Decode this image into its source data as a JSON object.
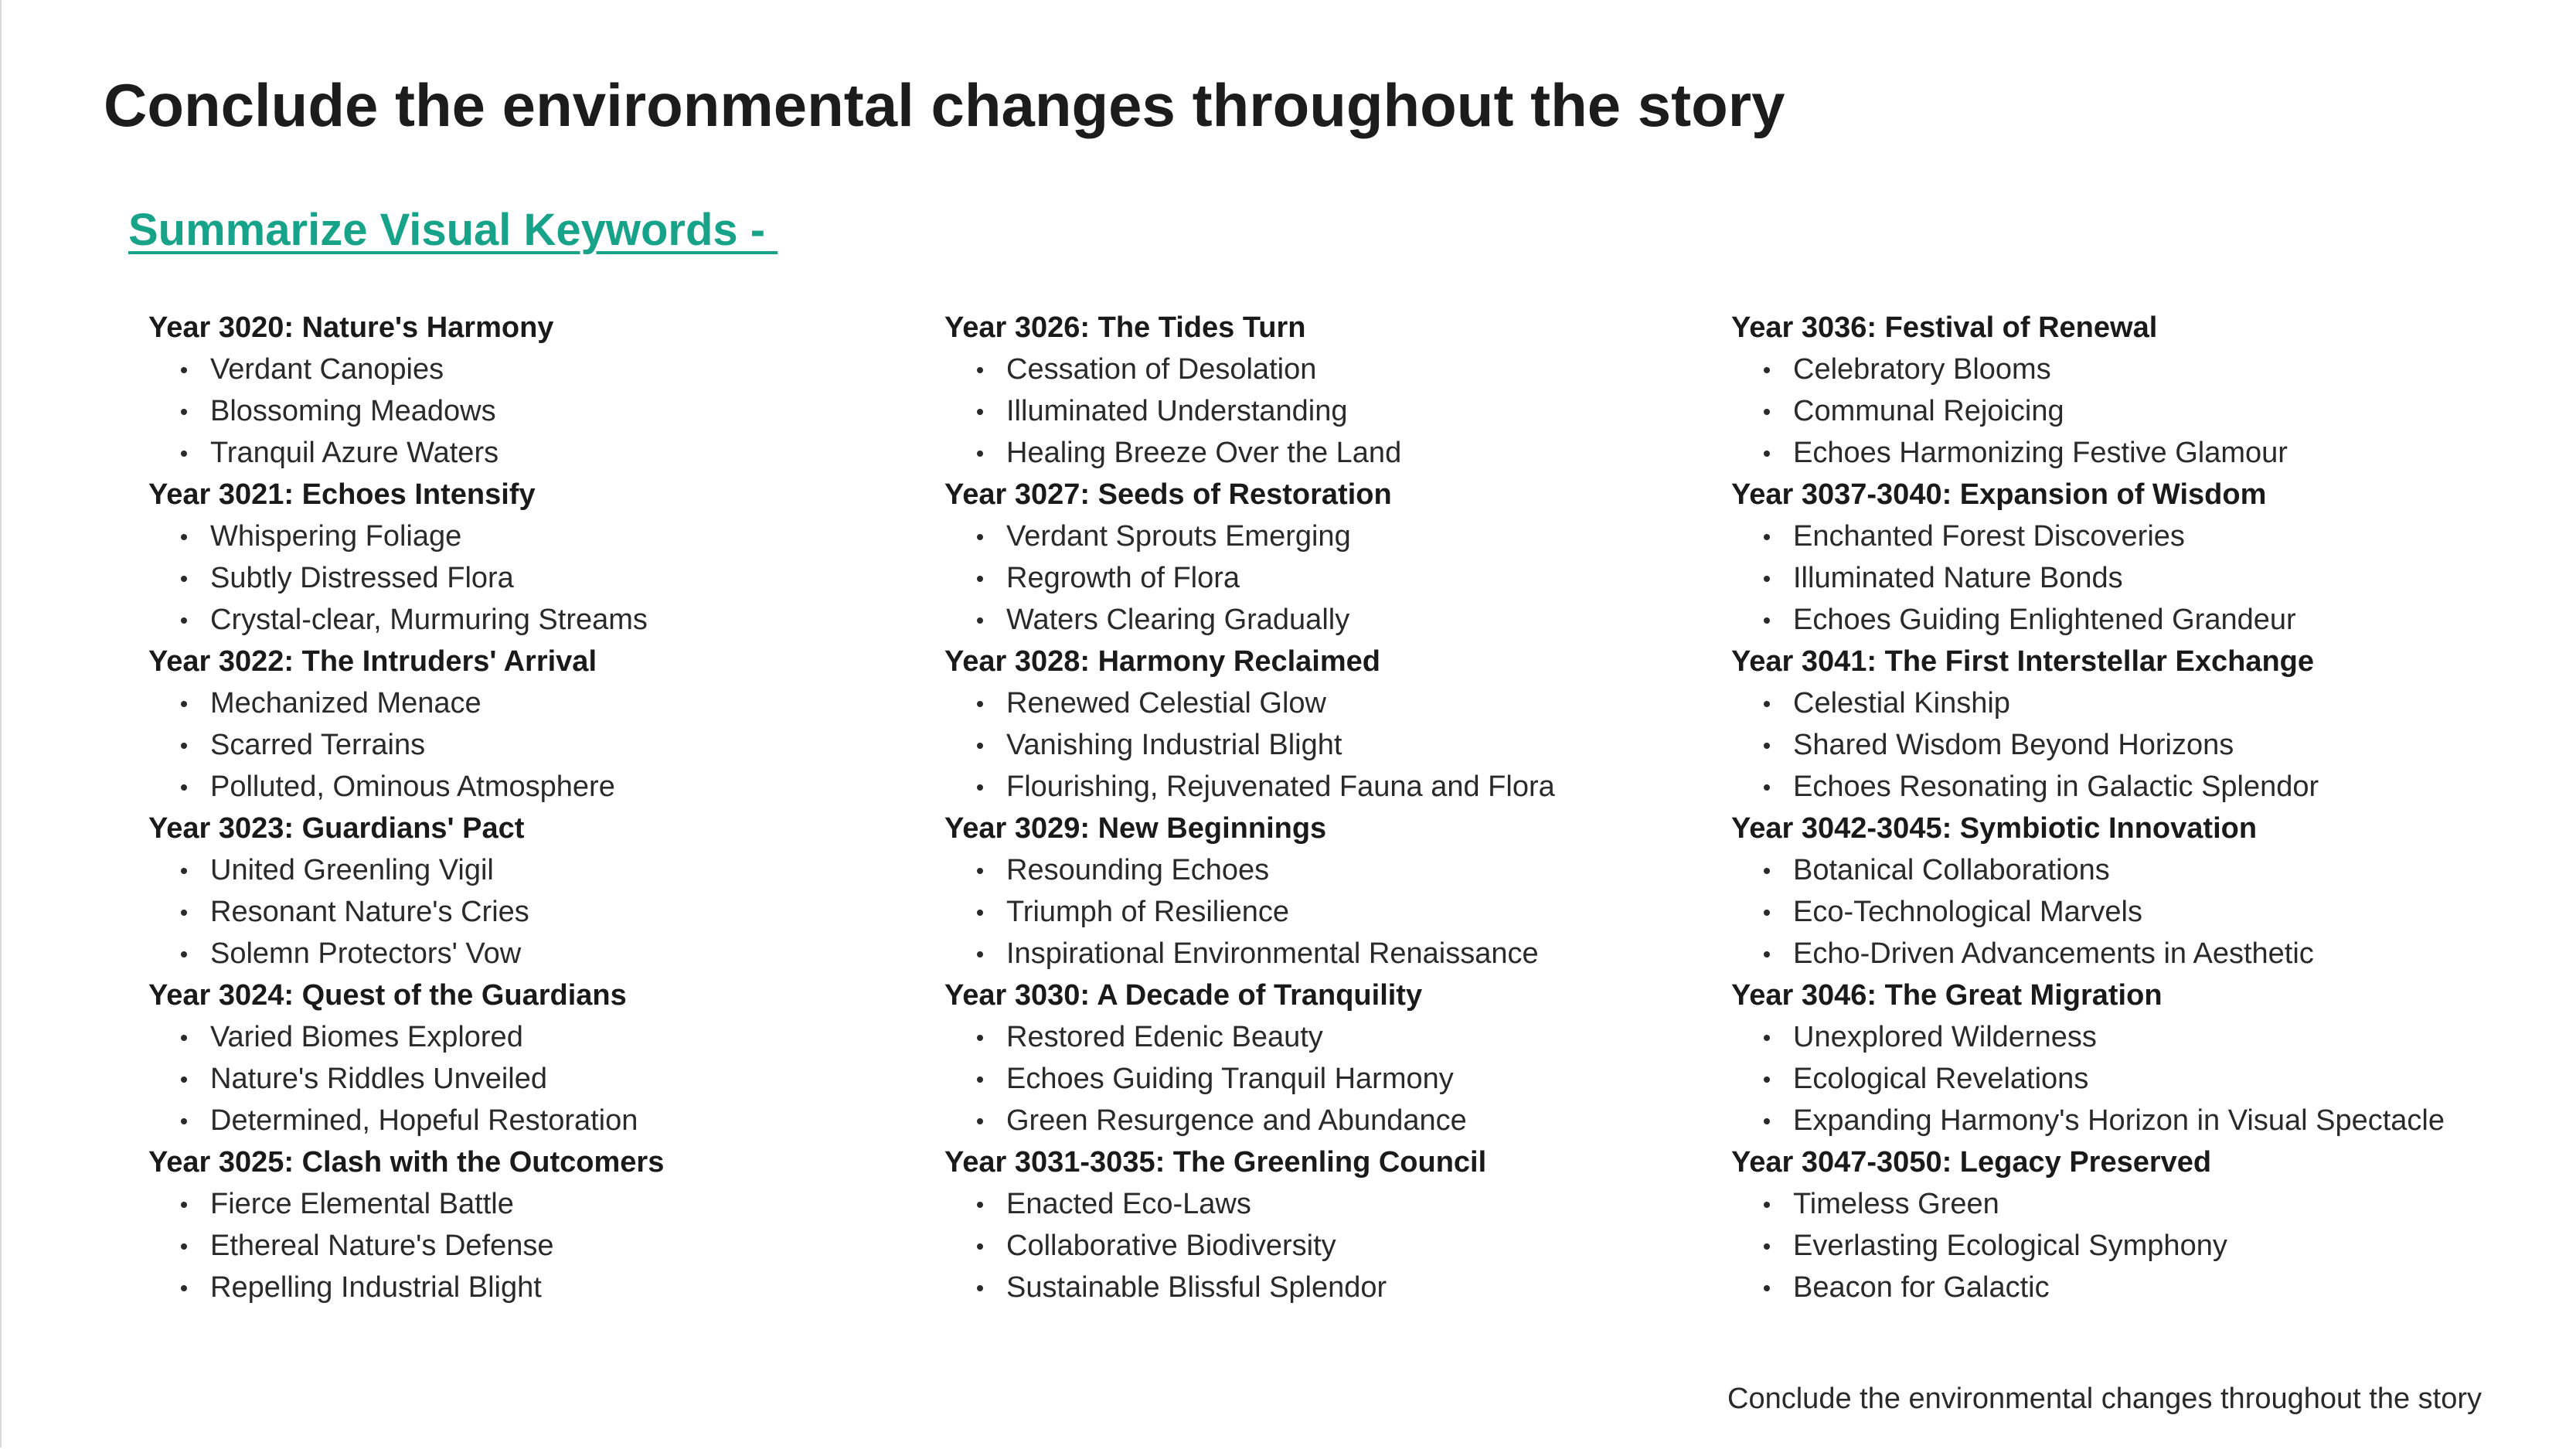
{
  "page": {
    "title": "Conclude the environmental changes throughout the story",
    "section_heading": "Summarize Visual Keywords - ",
    "footer": "Conclude the environmental changes throughout the story",
    "accent_color": "#17a389"
  },
  "columns": [
    {
      "years": [
        {
          "title": "Year 3020: Nature's Harmony",
          "items": [
            "Verdant Canopies",
            "Blossoming Meadows",
            "Tranquil Azure Waters"
          ]
        },
        {
          "title": "Year 3021: Echoes Intensify",
          "items": [
            "Whispering Foliage",
            "Subtly Distressed Flora",
            "Crystal-clear, Murmuring Streams"
          ]
        },
        {
          "title": "Year 3022: The Intruders' Arrival",
          "items": [
            "Mechanized Menace",
            "Scarred Terrains",
            "Polluted, Ominous Atmosphere"
          ]
        },
        {
          "title": "Year 3023: Guardians' Pact",
          "items": [
            "United Greenling Vigil",
            "Resonant Nature's Cries",
            "Solemn Protectors' Vow"
          ]
        },
        {
          "title": "Year 3024: Quest of the Guardians",
          "items": [
            "Varied Biomes Explored",
            "Nature's Riddles Unveiled",
            "Determined, Hopeful Restoration"
          ]
        },
        {
          "title": "Year 3025: Clash with the Outcomers",
          "items": [
            "Fierce Elemental Battle",
            "Ethereal Nature's Defense",
            "Repelling Industrial Blight"
          ]
        }
      ]
    },
    {
      "years": [
        {
          "title": "Year 3026: The Tides Turn",
          "items": [
            "Cessation of Desolation",
            "Illuminated Understanding",
            "Healing Breeze Over the Land"
          ]
        },
        {
          "title": "Year 3027: Seeds of Restoration",
          "items": [
            "Verdant Sprouts Emerging",
            "Regrowth of Flora",
            "Waters Clearing Gradually"
          ]
        },
        {
          "title": "Year 3028: Harmony Reclaimed",
          "items": [
            "Renewed Celestial Glow",
            "Vanishing Industrial Blight",
            "Flourishing, Rejuvenated Fauna and Flora"
          ]
        },
        {
          "title": "Year 3029: New Beginnings",
          "items": [
            "Resounding Echoes",
            "Triumph of Resilience",
            "Inspirational Environmental Renaissance"
          ]
        },
        {
          "title": "Year 3030: A Decade of Tranquility",
          "items": [
            "Restored Edenic Beauty",
            "Echoes Guiding Tranquil Harmony",
            "Green Resurgence and Abundance"
          ]
        },
        {
          "title": "Year 3031-3035: The Greenling Council",
          "items": [
            "Enacted Eco-Laws",
            "Collaborative Biodiversity",
            "Sustainable Blissful Splendor"
          ]
        }
      ]
    },
    {
      "years": [
        {
          "title": "Year 3036: Festival of Renewal",
          "items": [
            "Celebratory Blooms",
            "Communal Rejoicing",
            "Echoes Harmonizing Festive Glamour"
          ]
        },
        {
          "title": "Year 3037-3040: Expansion of Wisdom",
          "items": [
            "Enchanted Forest Discoveries",
            "Illuminated Nature Bonds",
            "Echoes Guiding Enlightened Grandeur"
          ]
        },
        {
          "title": "Year 3041: The First Interstellar Exchange",
          "items": [
            "Celestial Kinship",
            "Shared Wisdom Beyond Horizons",
            "Echoes Resonating in Galactic Splendor"
          ]
        },
        {
          "title": "Year 3042-3045: Symbiotic Innovation",
          "items": [
            "Botanical Collaborations",
            "Eco-Technological Marvels",
            "Echo-Driven Advancements in Aesthetic"
          ]
        },
        {
          "title": "Year 3046: The Great Migration",
          "items": [
            "Unexplored Wilderness",
            "Ecological Revelations",
            "Expanding Harmony's Horizon in Visual Spectacle"
          ]
        },
        {
          "title": "Year 3047-3050: Legacy Preserved",
          "items": [
            "Timeless Green",
            "Everlasting Ecological Symphony",
            "Beacon for Galactic"
          ]
        }
      ]
    }
  ]
}
